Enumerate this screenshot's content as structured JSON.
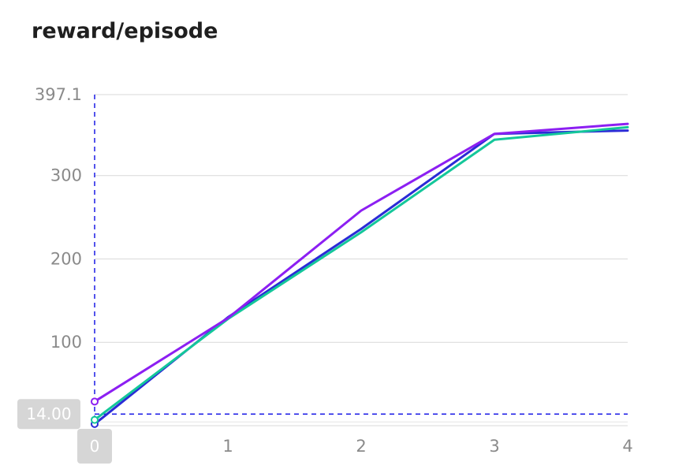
{
  "chart_data": {
    "type": "line",
    "title": "reward/episode",
    "xlabel": "",
    "ylabel": "",
    "x": [
      0,
      1,
      2,
      3,
      4
    ],
    "xlim": [
      0,
      4
    ],
    "ylim": [
      0,
      397.1
    ],
    "y_ticks": [
      "100",
      "200",
      "300",
      "397.1"
    ],
    "x_ticks": [
      "0",
      "1",
      "2",
      "3",
      "4"
    ],
    "grid": true,
    "legend": "none",
    "series": [
      {
        "color": "#2b2bd6",
        "values": [
          2,
          130,
          236,
          350,
          354
        ]
      },
      {
        "color": "#14c79a",
        "values": [
          7,
          128,
          232,
          343,
          358
        ]
      },
      {
        "color": "#8c1ff2",
        "values": [
          29,
          129,
          258,
          350,
          362
        ]
      }
    ],
    "crosshair": {
      "x": 0,
      "y": 14.0,
      "y_label": "14.00",
      "x_label": "0",
      "color": "#1a1ae6"
    }
  }
}
